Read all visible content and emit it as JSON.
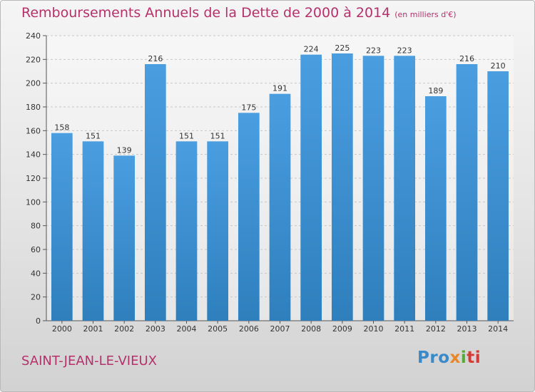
{
  "header": {
    "title": "Remboursements Annuels de la Dette de 2000 à 2014",
    "subtitle": "(en milliers d'€)"
  },
  "footer": {
    "commune": "SAINT-JEAN-LE-VIEUX",
    "logo_parts": [
      "Pro",
      "x",
      "i",
      "ti"
    ]
  },
  "colors": {
    "bar": "#4a9ee0",
    "bar_dark": "#2f7fbd",
    "title": "#b5316a",
    "grid": "#c8c8c8"
  },
  "chart_data": {
    "type": "bar",
    "title": "Remboursements Annuels de la Dette de 2000 à 2014",
    "xlabel": "",
    "ylabel": "",
    "ylim": [
      0,
      240
    ],
    "yticks": [
      0,
      20,
      40,
      60,
      80,
      100,
      120,
      140,
      160,
      180,
      200,
      220,
      240
    ],
    "grid": true,
    "categories": [
      "2000",
      "2001",
      "2002",
      "2003",
      "2004",
      "2005",
      "2006",
      "2007",
      "2008",
      "2009",
      "2010",
      "2011",
      "2012",
      "2013",
      "2014"
    ],
    "values": [
      158,
      151,
      139,
      216,
      151,
      151,
      175,
      191,
      224,
      225,
      223,
      223,
      189,
      216,
      210
    ]
  }
}
